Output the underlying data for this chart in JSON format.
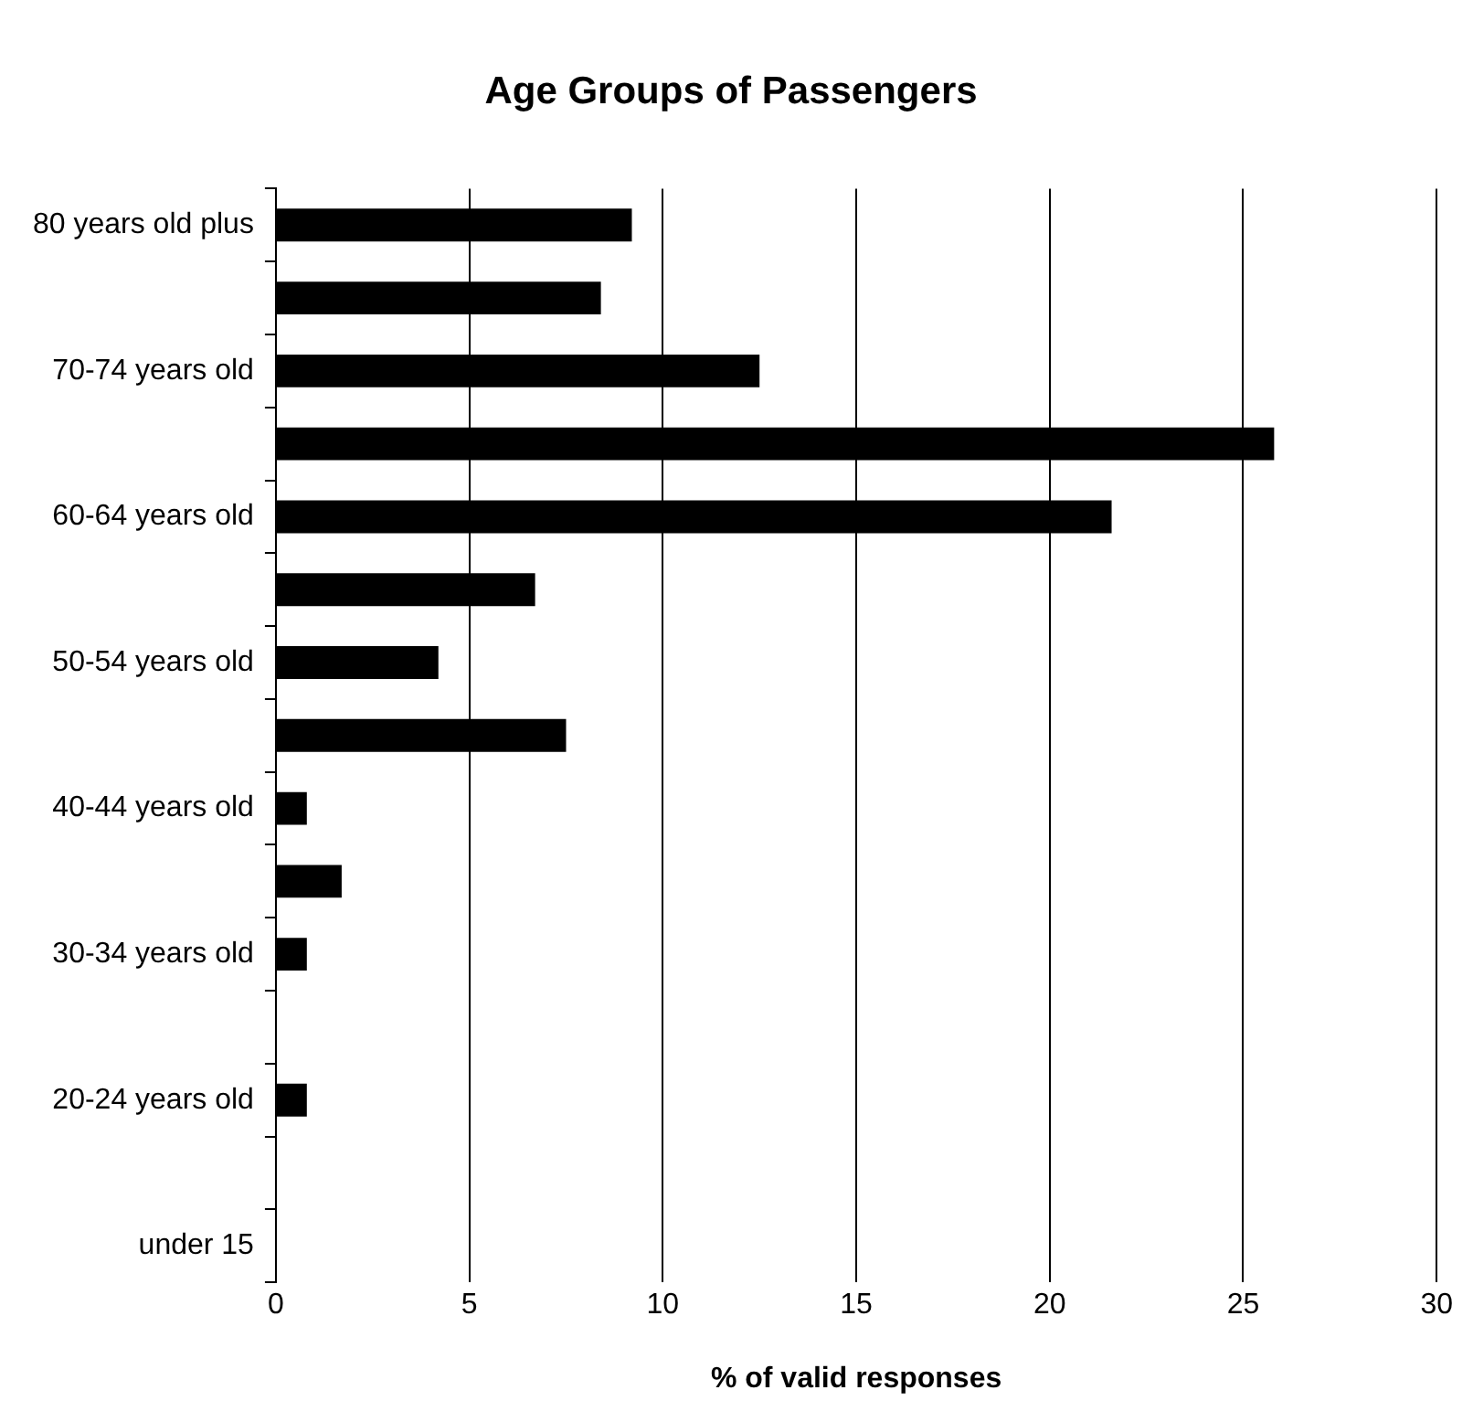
{
  "chart_data": {
    "type": "bar",
    "orientation": "horizontal",
    "title": "Age Groups of Passengers",
    "xlabel": "% of valid responses",
    "categories": [
      "80 years old plus",
      null,
      "70-74 years old",
      null,
      "60-64 years old",
      null,
      "50-54 years old",
      null,
      "40-44 years old",
      null,
      "30-34 years old",
      null,
      "20-24 years old",
      null,
      "under 15"
    ],
    "values": [
      9.2,
      8.4,
      12.5,
      25.8,
      21.6,
      6.7,
      4.2,
      7.5,
      0.8,
      1.7,
      0.8,
      0,
      0.8,
      0,
      0
    ],
    "color": "#000000",
    "xlim": [
      0,
      30
    ],
    "xticks": [
      0,
      5,
      10,
      15,
      20,
      25,
      30
    ],
    "grid": "x",
    "legend": false
  }
}
